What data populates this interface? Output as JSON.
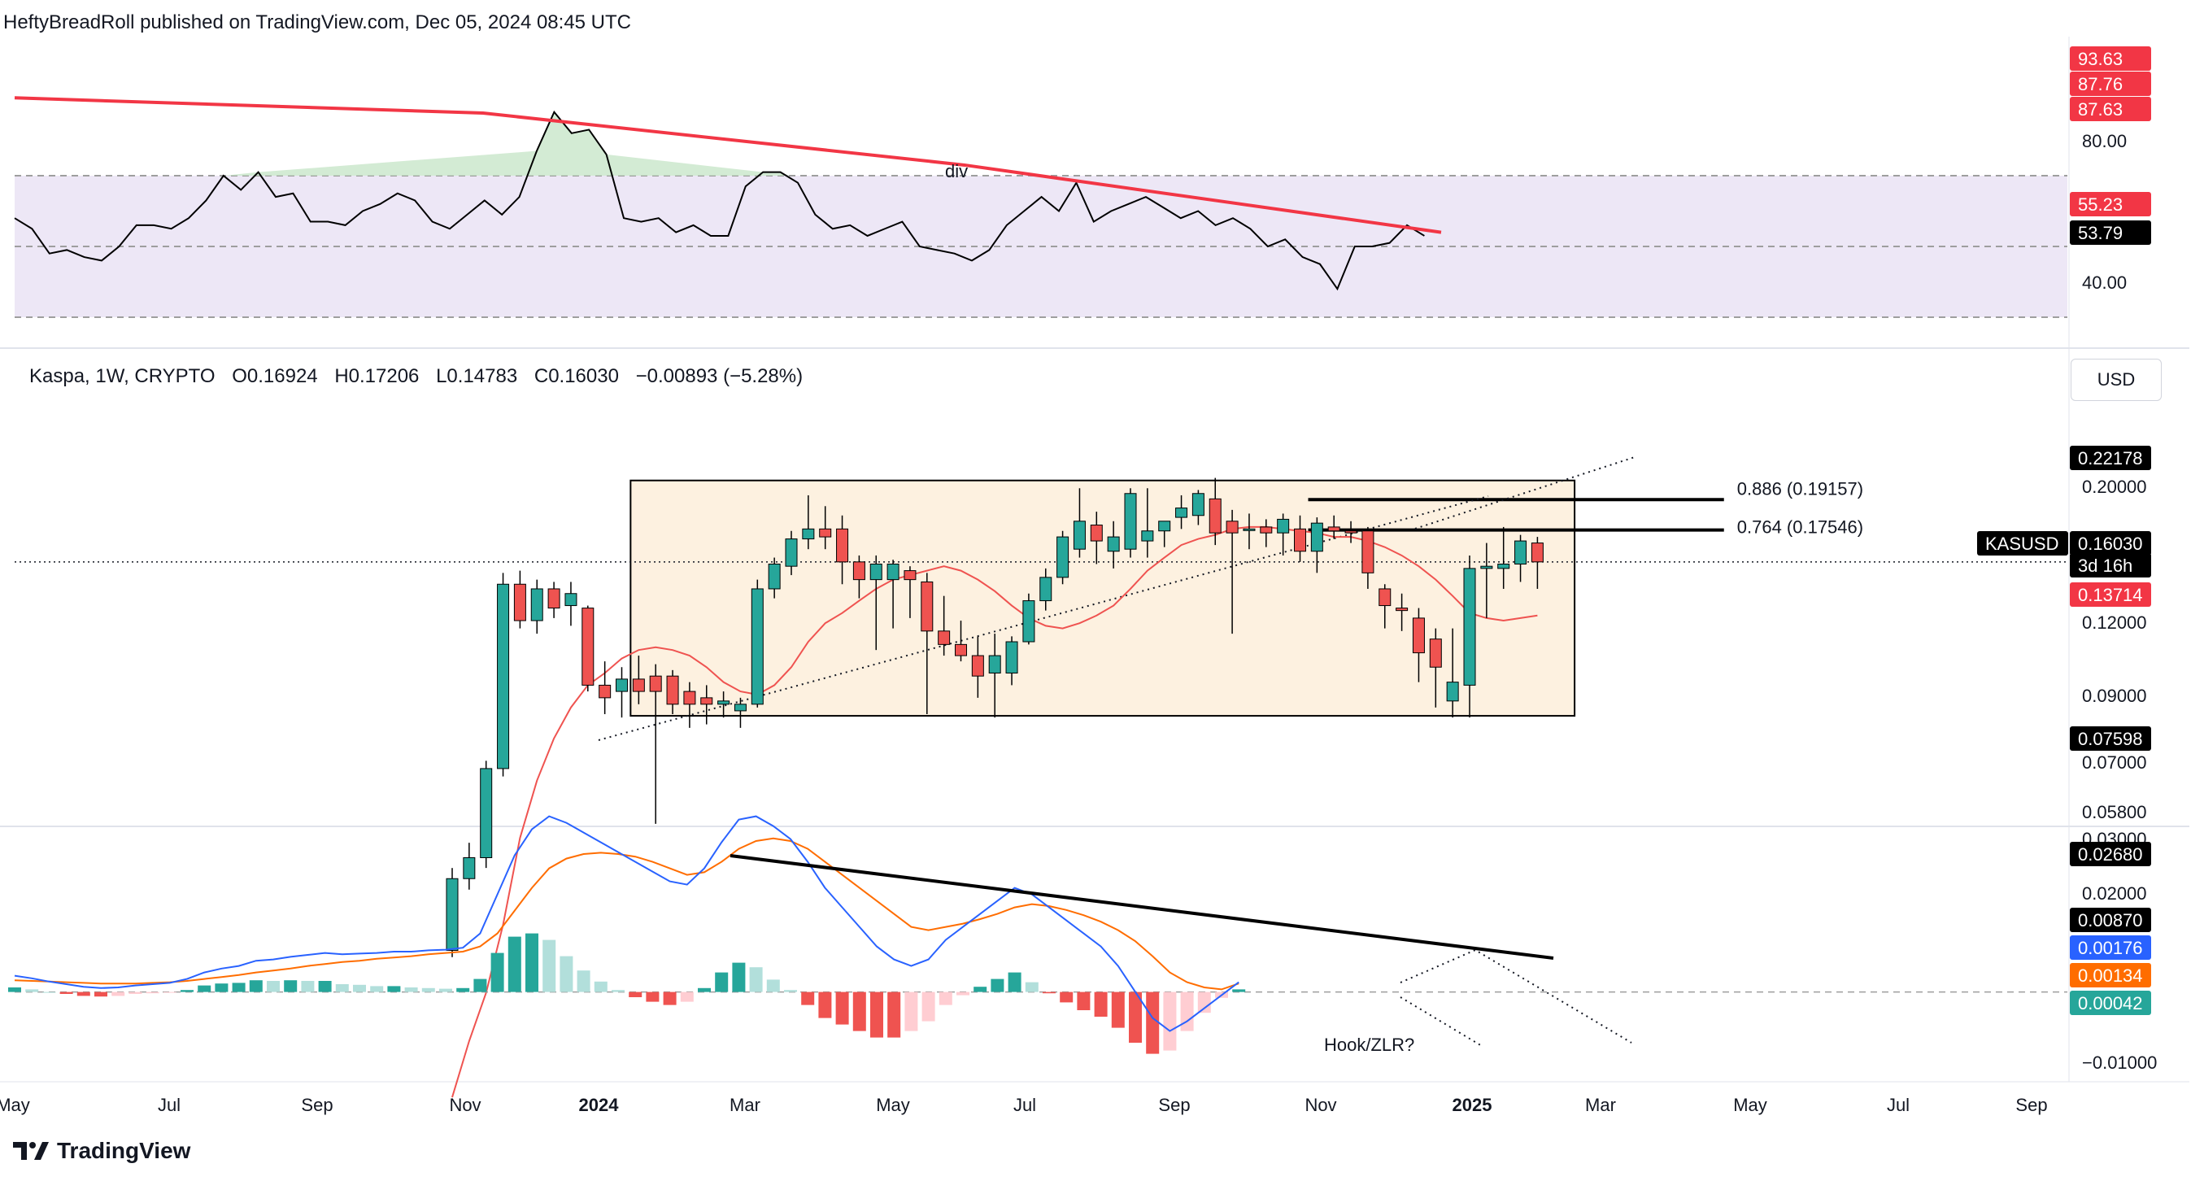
{
  "header": {
    "author": "HeftyBreadRoll",
    "published_on": "published on TradingView.com, Dec 05, 2024 08:45 UTC"
  },
  "legend": {
    "symbol": "Kaspa, 1W, CRYPTO",
    "open": "O0.16924",
    "high": "H0.17206",
    "low": "L0.14783",
    "close": "C0.16030",
    "change": "−0.00893 (−5.28%)"
  },
  "currency_button": "USD",
  "footer": {
    "brand": "TradingView"
  },
  "colors": {
    "up": "#26a69a",
    "down": "#ef5350",
    "rsi_band": "#ede7f6",
    "box_fill": "#fdf1e0",
    "macd_line": "#2962ff",
    "signal_line": "#ff6d00",
    "trendline_red": "#f23645",
    "hist_up_light": "#b2dfdb",
    "hist_down_light": "#ffcdd2"
  },
  "chart_data": [
    {
      "type": "line",
      "x_axis": {
        "labels": [
          "May",
          "Jul",
          "Sep",
          "Nov",
          "2024",
          "Mar",
          "May",
          "Jul",
          "Sep",
          "Nov",
          "2025",
          "Mar",
          "May",
          "Jul",
          "Sep"
        ]
      },
      "title": "",
      "y_axis_labels": [
        "80.00",
        "40.00"
      ],
      "band": [
        30,
        70
      ],
      "mid_level": 50,
      "price_tags": [
        {
          "text": "93.63",
          "color": "#f23645"
        },
        {
          "text": "87.76",
          "color": "#f23645"
        },
        {
          "text": "87.63",
          "color": "#f23645"
        },
        {
          "text": "55.23",
          "color": "#f23645"
        },
        {
          "text": "53.79",
          "color": "#000000"
        }
      ],
      "annotations": [
        "div"
      ],
      "series": [
        {
          "values": [
            58,
            55,
            48,
            49,
            47,
            46,
            50,
            56,
            56,
            55,
            58,
            63,
            70,
            66,
            71,
            64,
            65,
            57,
            57,
            56,
            60,
            62,
            65,
            63,
            57,
            55,
            59,
            63,
            59,
            64,
            77,
            88,
            82,
            83,
            76,
            58,
            57,
            58,
            54,
            56,
            53,
            53,
            67,
            71,
            71,
            68,
            59,
            55,
            56,
            53,
            55,
            57,
            50,
            49,
            48,
            46,
            49,
            56,
            60,
            64,
            60,
            68,
            57,
            60,
            62,
            64,
            61,
            58,
            60,
            56,
            58,
            55,
            50,
            52,
            47,
            45,
            38,
            50,
            50,
            51,
            56,
            53
          ]
        },
        {
          "name": "divergence trendline",
          "values": [
            92,
            87.7,
            73,
            54
          ]
        }
      ]
    },
    {
      "type": "candlestick",
      "title": "Kaspa, 1W, CRYPTO",
      "y_axis_labels": [
        "0.20000",
        "0.12000",
        "0.09000",
        "0.07000",
        "0.05800",
        "0.03000"
      ],
      "price_tags": [
        {
          "text": "0.22178",
          "color": "#000000"
        },
        {
          "text": "KASUSD",
          "color": "#000000"
        },
        {
          "text": "0.16030",
          "color": "#000000"
        },
        {
          "text": "3d 16h",
          "color": "#000000"
        },
        {
          "text": "0.13714",
          "color": "#f23645"
        },
        {
          "text": "0.07598",
          "color": "#000000"
        }
      ],
      "annotations": [
        "0.886 (0.19157)",
        "0.764 (0.17546)"
      ],
      "range_box": {
        "high": 0.2025,
        "low": 0.1025
      },
      "fib_levels": [
        0.19157,
        0.17546
      ],
      "candles": [
        {
          "o": 0.052,
          "h": 0.066,
          "l": 0.051,
          "c": 0.064
        },
        {
          "o": 0.064,
          "h": 0.071,
          "l": 0.062,
          "c": 0.068
        },
        {
          "o": 0.068,
          "h": 0.09,
          "l": 0.066,
          "c": 0.088
        },
        {
          "o": 0.088,
          "h": 0.155,
          "l": 0.086,
          "c": 0.15
        },
        {
          "o": 0.15,
          "h": 0.156,
          "l": 0.132,
          "c": 0.135
        },
        {
          "o": 0.135,
          "h": 0.152,
          "l": 0.13,
          "c": 0.148
        },
        {
          "o": 0.148,
          "h": 0.151,
          "l": 0.136,
          "c": 0.14
        },
        {
          "o": 0.141,
          "h": 0.151,
          "l": 0.133,
          "c": 0.146
        },
        {
          "o": 0.14,
          "h": 0.141,
          "l": 0.11,
          "c": 0.112
        },
        {
          "o": 0.112,
          "h": 0.12,
          "l": 0.103,
          "c": 0.108
        },
        {
          "o": 0.11,
          "h": 0.118,
          "l": 0.102,
          "c": 0.114
        },
        {
          "o": 0.114,
          "h": 0.122,
          "l": 0.106,
          "c": 0.11
        },
        {
          "o": 0.115,
          "h": 0.119,
          "l": 0.075,
          "c": 0.11
        },
        {
          "o": 0.115,
          "h": 0.117,
          "l": 0.103,
          "c": 0.106
        },
        {
          "o": 0.11,
          "h": 0.113,
          "l": 0.099,
          "c": 0.106
        },
        {
          "o": 0.108,
          "h": 0.112,
          "l": 0.1,
          "c": 0.106
        },
        {
          "o": 0.106,
          "h": 0.11,
          "l": 0.102,
          "c": 0.107
        },
        {
          "o": 0.104,
          "h": 0.108,
          "l": 0.099,
          "c": 0.106
        },
        {
          "o": 0.106,
          "h": 0.152,
          "l": 0.105,
          "c": 0.148
        },
        {
          "o": 0.148,
          "h": 0.162,
          "l": 0.144,
          "c": 0.159
        },
        {
          "o": 0.158,
          "h": 0.175,
          "l": 0.154,
          "c": 0.171
        },
        {
          "o": 0.171,
          "h": 0.194,
          "l": 0.166,
          "c": 0.176
        },
        {
          "o": 0.176,
          "h": 0.188,
          "l": 0.166,
          "c": 0.172
        },
        {
          "o": 0.176,
          "h": 0.183,
          "l": 0.15,
          "c": 0.16
        },
        {
          "o": 0.16,
          "h": 0.163,
          "l": 0.144,
          "c": 0.152
        },
        {
          "o": 0.152,
          "h": 0.163,
          "l": 0.124,
          "c": 0.159
        },
        {
          "o": 0.152,
          "h": 0.161,
          "l": 0.132,
          "c": 0.159
        },
        {
          "o": 0.156,
          "h": 0.158,
          "l": 0.136,
          "c": 0.152
        },
        {
          "o": 0.151,
          "h": 0.155,
          "l": 0.103,
          "c": 0.131
        },
        {
          "o": 0.131,
          "h": 0.145,
          "l": 0.122,
          "c": 0.126
        },
        {
          "o": 0.126,
          "h": 0.135,
          "l": 0.12,
          "c": 0.122
        },
        {
          "o": 0.122,
          "h": 0.129,
          "l": 0.108,
          "c": 0.115
        },
        {
          "o": 0.116,
          "h": 0.13,
          "l": 0.102,
          "c": 0.122
        },
        {
          "o": 0.116,
          "h": 0.129,
          "l": 0.112,
          "c": 0.127
        },
        {
          "o": 0.127,
          "h": 0.146,
          "l": 0.126,
          "c": 0.143
        },
        {
          "o": 0.143,
          "h": 0.157,
          "l": 0.139,
          "c": 0.153
        },
        {
          "o": 0.153,
          "h": 0.175,
          "l": 0.15,
          "c": 0.172
        },
        {
          "o": 0.166,
          "h": 0.198,
          "l": 0.162,
          "c": 0.18
        },
        {
          "o": 0.178,
          "h": 0.185,
          "l": 0.159,
          "c": 0.17
        },
        {
          "o": 0.165,
          "h": 0.18,
          "l": 0.157,
          "c": 0.172
        },
        {
          "o": 0.166,
          "h": 0.198,
          "l": 0.162,
          "c": 0.195
        },
        {
          "o": 0.17,
          "h": 0.198,
          "l": 0.162,
          "c": 0.175
        },
        {
          "o": 0.175,
          "h": 0.18,
          "l": 0.167,
          "c": 0.18
        },
        {
          "o": 0.182,
          "h": 0.194,
          "l": 0.176,
          "c": 0.187
        },
        {
          "o": 0.183,
          "h": 0.197,
          "l": 0.178,
          "c": 0.195
        },
        {
          "o": 0.192,
          "h": 0.204,
          "l": 0.168,
          "c": 0.174
        },
        {
          "o": 0.18,
          "h": 0.186,
          "l": 0.13,
          "c": 0.174
        },
        {
          "o": 0.176,
          "h": 0.184,
          "l": 0.166,
          "c": 0.176
        },
        {
          "o": 0.177,
          "h": 0.181,
          "l": 0.167,
          "c": 0.174
        },
        {
          "o": 0.174,
          "h": 0.184,
          "l": 0.163,
          "c": 0.181
        },
        {
          "o": 0.176,
          "h": 0.183,
          "l": 0.16,
          "c": 0.165
        },
        {
          "o": 0.165,
          "h": 0.182,
          "l": 0.155,
          "c": 0.179
        },
        {
          "o": 0.177,
          "h": 0.183,
          "l": 0.171,
          "c": 0.175
        },
        {
          "o": 0.175,
          "h": 0.18,
          "l": 0.169,
          "c": 0.174
        },
        {
          "o": 0.175,
          "h": 0.177,
          "l": 0.148,
          "c": 0.155
        },
        {
          "o": 0.148,
          "h": 0.15,
          "l": 0.132,
          "c": 0.141
        },
        {
          "o": 0.14,
          "h": 0.146,
          "l": 0.131,
          "c": 0.139
        },
        {
          "o": 0.136,
          "h": 0.14,
          "l": 0.113,
          "c": 0.123
        },
        {
          "o": 0.128,
          "h": 0.132,
          "l": 0.105,
          "c": 0.118
        },
        {
          "o": 0.107,
          "h": 0.132,
          "l": 0.102,
          "c": 0.113
        },
        {
          "o": 0.112,
          "h": 0.163,
          "l": 0.102,
          "c": 0.157
        },
        {
          "o": 0.157,
          "h": 0.169,
          "l": 0.136,
          "c": 0.158
        },
        {
          "o": 0.157,
          "h": 0.177,
          "l": 0.148,
          "c": 0.159
        },
        {
          "o": 0.159,
          "h": 0.173,
          "l": 0.151,
          "c": 0.17
        },
        {
          "o": 0.169,
          "h": 0.172,
          "l": 0.148,
          "c": 0.16
        }
      ],
      "moving_average": [
        0.034,
        0.04,
        0.046,
        0.056,
        0.072,
        0.085,
        0.096,
        0.105,
        0.112,
        0.116,
        0.121,
        0.124,
        0.125,
        0.124,
        0.122,
        0.118,
        0.113,
        0.11,
        0.109,
        0.112,
        0.118,
        0.127,
        0.134,
        0.138,
        0.143,
        0.148,
        0.152,
        0.154,
        0.156,
        0.158,
        0.156,
        0.152,
        0.147,
        0.141,
        0.136,
        0.133,
        0.132,
        0.134,
        0.137,
        0.141,
        0.148,
        0.156,
        0.162,
        0.168,
        0.171,
        0.173,
        0.176,
        0.177,
        0.177,
        0.176,
        0.175,
        0.174,
        0.172,
        0.172,
        0.17,
        0.167,
        0.163,
        0.158,
        0.152,
        0.145,
        0.138,
        0.136,
        0.135,
        0.136,
        0.137
      ]
    },
    {
      "type": "area",
      "title": "",
      "y_axis_labels": [
        "0.02000",
        "−0.01000"
      ],
      "price_tags": [
        {
          "text": "0.02680",
          "color": "#000000"
        },
        {
          "text": "0.00870",
          "color": "#000000"
        },
        {
          "text": "0.00176",
          "color": "#2962ff"
        },
        {
          "text": "0.00134",
          "color": "#ff6d00"
        },
        {
          "text": "0.00042",
          "color": "#26a69a"
        }
      ],
      "annotations": [
        "Hook/ZLR?"
      ],
      "series": [
        {
          "name": "MACD",
          "values": [
            0.0025,
            0.0021,
            0.0016,
            0.0012,
            0.0008,
            0.0006,
            0.0007,
            0.001,
            0.0012,
            0.0014,
            0.002,
            0.003,
            0.0036,
            0.004,
            0.0048,
            0.005,
            0.0054,
            0.0057,
            0.006,
            0.0058,
            0.0059,
            0.006,
            0.0062,
            0.0062,
            0.0064,
            0.0065,
            0.0068,
            0.009,
            0.015,
            0.021,
            0.025,
            0.027,
            0.026,
            0.0245,
            0.023,
            0.0215,
            0.02,
            0.0185,
            0.017,
            0.0165,
            0.019,
            0.023,
            0.0265,
            0.027,
            0.0255,
            0.0235,
            0.02,
            0.016,
            0.013,
            0.01,
            0.007,
            0.005,
            0.004,
            0.005,
            0.008,
            0.01,
            0.012,
            0.014,
            0.016,
            0.015,
            0.013,
            0.011,
            0.009,
            0.007,
            0.004,
            0.0,
            -0.004,
            -0.006,
            -0.0045,
            -0.0025,
            -0.0005,
            0.0015
          ]
        },
        {
          "name": "Signal",
          "values": [
            0.0018,
            0.0017,
            0.0016,
            0.0015,
            0.0014,
            0.0013,
            0.0013,
            0.0013,
            0.0014,
            0.0015,
            0.0017,
            0.002,
            0.0023,
            0.0026,
            0.003,
            0.0033,
            0.0036,
            0.004,
            0.0043,
            0.0046,
            0.0048,
            0.0051,
            0.0053,
            0.0055,
            0.0058,
            0.006,
            0.0062,
            0.007,
            0.009,
            0.0125,
            0.016,
            0.019,
            0.0205,
            0.0212,
            0.0214,
            0.0212,
            0.0208,
            0.02,
            0.019,
            0.018,
            0.0184,
            0.02,
            0.022,
            0.0232,
            0.0236,
            0.0232,
            0.022,
            0.02,
            0.018,
            0.016,
            0.014,
            0.012,
            0.01,
            0.0095,
            0.01,
            0.0105,
            0.0112,
            0.012,
            0.013,
            0.0135,
            0.0132,
            0.0126,
            0.0118,
            0.0108,
            0.0095,
            0.0078,
            0.0055,
            0.003,
            0.0015,
            0.0007,
            0.0004,
            0.0013
          ]
        },
        {
          "name": "Histogram",
          "values": [
            0.0007,
            0.0004,
            0.0,
            -0.0003,
            -0.0006,
            -0.0007,
            -0.0006,
            -0.0003,
            -0.0002,
            -0.0001,
            0.0003,
            0.001,
            0.0013,
            0.0014,
            0.0018,
            0.0017,
            0.0018,
            0.0017,
            0.0017,
            0.0012,
            0.0011,
            0.0009,
            0.0009,
            0.0007,
            0.0006,
            0.0005,
            0.0006,
            0.002,
            0.006,
            0.0085,
            0.009,
            0.008,
            0.0055,
            0.0033,
            0.0016,
            0.0003,
            -0.0008,
            -0.0015,
            -0.002,
            -0.0015,
            0.0006,
            0.003,
            0.0045,
            0.0038,
            0.0019,
            0.0003,
            -0.002,
            -0.004,
            -0.005,
            -0.006,
            -0.007,
            -0.007,
            -0.006,
            -0.0045,
            -0.002,
            -0.0005,
            0.0008,
            0.002,
            0.003,
            0.0015,
            -0.0002,
            -0.0016,
            -0.0028,
            -0.0038,
            -0.0055,
            -0.0078,
            -0.0095,
            -0.009,
            -0.006,
            -0.0032,
            -0.0009,
            0.0004
          ]
        }
      ]
    }
  ]
}
